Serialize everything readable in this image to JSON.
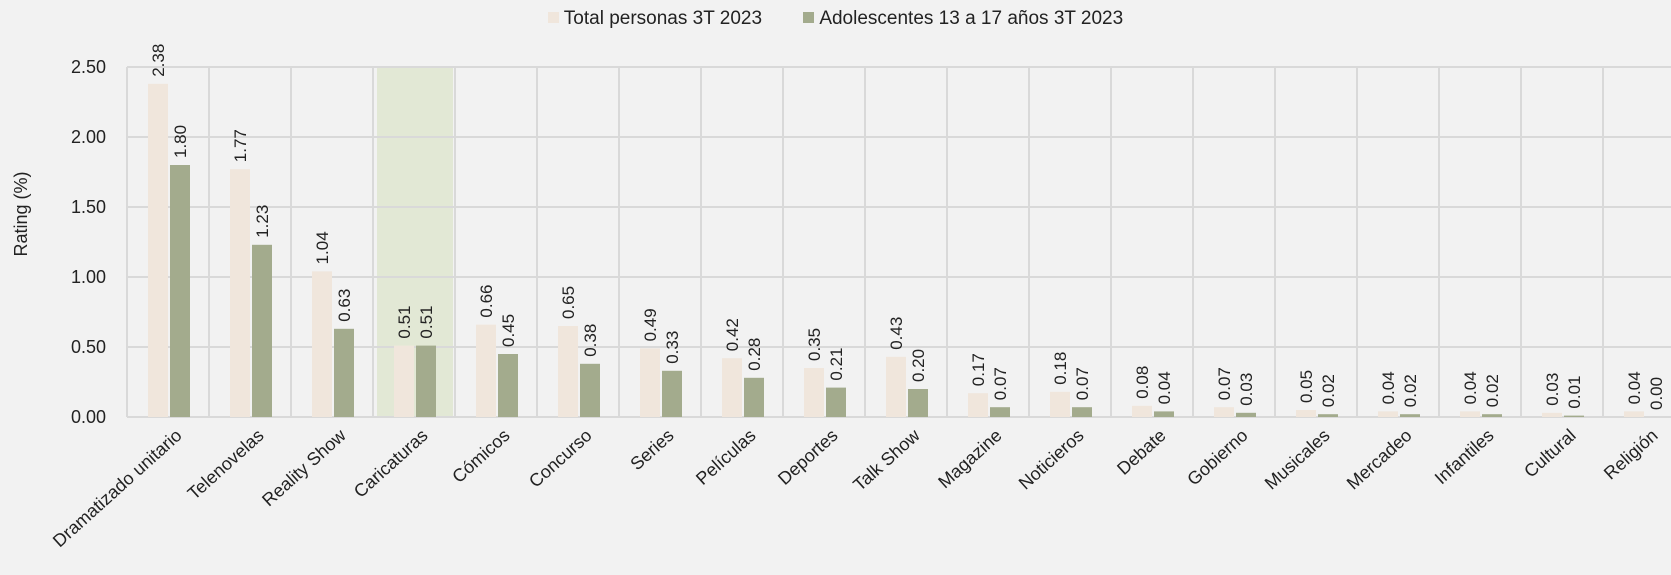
{
  "chart_data": {
    "type": "bar",
    "ylabel": "Rating (%)",
    "ylim": [
      0,
      2.5
    ],
    "yticks": [
      "0.00",
      "0.50",
      "1.00",
      "1.50",
      "2.00",
      "2.50"
    ],
    "grid": true,
    "legend_position": "top-center",
    "categories": [
      "Dramatizado unitario",
      "Telenovelas",
      "Reality Show",
      "Caricaturas",
      "Cómicos",
      "Concurso",
      "Series",
      "Películas",
      "Deportes",
      "Talk Show",
      "Magazine",
      "Noticieros",
      "Debate",
      "Gobierno",
      "Musicales",
      "Mercadeo",
      "Infantiles",
      "Cultural",
      "Religión"
    ],
    "highlighted_category": "Caricaturas",
    "highlight_color": "#e2e8d5",
    "series": [
      {
        "name": "Total personas 3T 2023",
        "color": "#f0e6dc",
        "values": [
          2.38,
          1.77,
          1.04,
          0.51,
          0.66,
          0.65,
          0.49,
          0.42,
          0.35,
          0.43,
          0.17,
          0.18,
          0.08,
          0.07,
          0.05,
          0.04,
          0.04,
          0.03,
          0.04
        ],
        "labels": [
          "2.38",
          "1.77",
          "1.04",
          "0.51",
          "0.66",
          "0.65",
          "0.49",
          "0.42",
          "0.35",
          "0.43",
          "0.17",
          "0.18",
          "0.08",
          "0.07",
          "0.05",
          "0.04",
          "0.04",
          "0.03",
          "0.04"
        ]
      },
      {
        "name": "Adolescentes 13 a 17 años 3T 2023",
        "color": "#a3ab8d",
        "values": [
          1.8,
          1.23,
          0.63,
          0.51,
          0.45,
          0.38,
          0.33,
          0.28,
          0.21,
          0.2,
          0.07,
          0.07,
          0.04,
          0.03,
          0.02,
          0.02,
          0.02,
          0.01,
          0.0
        ],
        "labels": [
          "1.80",
          "1.23",
          "0.63",
          "0.51",
          "0.45",
          "0.38",
          "0.33",
          "0.28",
          "0.21",
          "0.20",
          "0.07",
          "0.07",
          "0.04",
          "0.03",
          "0.02",
          "0.02",
          "0.02",
          "0.01",
          "0.00"
        ]
      }
    ]
  }
}
